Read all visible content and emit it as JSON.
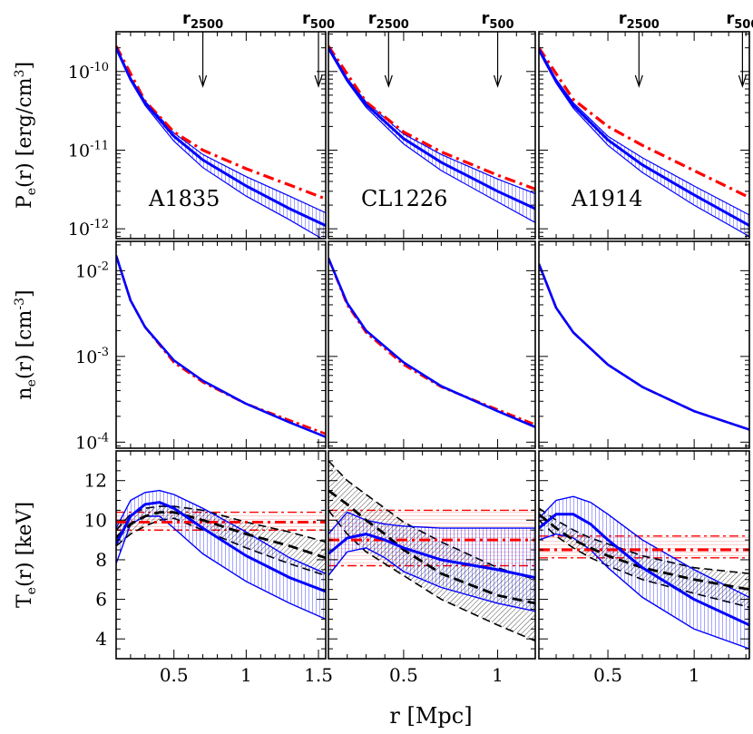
{
  "colors": {
    "model_obs": "#0000ff",
    "model_alt": "#ff0000",
    "temp_ref": "#000000"
  },
  "chart_data": {
    "type": "line",
    "xlabel": "r [Mpc]",
    "row_labels": [
      {
        "main": "P",
        "sub": "e",
        "rest": "(r) [erg/cm",
        "sup": "3",
        "end": "]"
      },
      {
        "main": "n",
        "sub": "e",
        "rest": "(r) [cm",
        "sup": "-3",
        "end": "]"
      },
      {
        "main": "T",
        "sub": "e",
        "rest": "(r) [keV]",
        "sup": "",
        "end": ""
      }
    ],
    "clusters": [
      {
        "name": "A1835",
        "xlim": [
          0.1,
          1.55
        ],
        "xticks": [
          {
            "v": 0.5,
            "label": "0.5"
          },
          {
            "v": 1.0,
            "label": "1"
          },
          {
            "v": 1.5,
            "label": "1.5"
          }
        ],
        "radii": [
          {
            "label": "r",
            "sub": "2500",
            "x": 0.7
          },
          {
            "label": "r",
            "sub": "500",
            "x": 1.5
          }
        ],
        "pressure": {
          "blue_x": [
            0.1,
            0.2,
            0.3,
            0.5,
            0.7,
            1.0,
            1.3,
            1.55
          ],
          "blue": [
            2e-10,
            8e-11,
            4e-11,
            1.5e-11,
            7.5e-12,
            3.5e-12,
            1.8e-12,
            1.1e-12
          ],
          "blue_lo": [
            1.9e-10,
            7.6e-11,
            3.7e-11,
            1.3e-11,
            6e-12,
            2.6e-12,
            1.3e-12,
            7e-13
          ],
          "blue_hi": [
            2.1e-10,
            8.4e-11,
            4.2e-11,
            1.65e-11,
            8.8e-12,
            4.6e-12,
            2.6e-12,
            1.6e-12
          ],
          "red_x": [
            0.1,
            0.3,
            0.5,
            0.7,
            1.0,
            1.3,
            1.55
          ],
          "red": [
            2.1e-10,
            4.2e-11,
            1.7e-11,
            1e-11,
            5.8e-12,
            3.6e-12,
            2.4e-12
          ]
        },
        "density": {
          "x": [
            0.1,
            0.2,
            0.3,
            0.5,
            0.7,
            1.0,
            1.3,
            1.55
          ],
          "blue": [
            0.015,
            0.0045,
            0.0022,
            0.0009,
            0.00052,
            0.00028,
            0.00017,
            0.000115
          ],
          "red": [
            0.015,
            0.0045,
            0.0022,
            0.00085,
            0.0005,
            0.00028,
            0.00018,
            0.000125
          ]
        },
        "temperature": {
          "x": [
            0.1,
            0.2,
            0.3,
            0.4,
            0.5,
            0.7,
            1.0,
            1.3,
            1.55
          ],
          "blue": [
            8.8,
            10.2,
            10.8,
            10.9,
            10.6,
            9.6,
            8.2,
            7.1,
            6.4
          ],
          "blue_lo": [
            7.8,
            9.8,
            10.2,
            10.2,
            9.6,
            8.3,
            6.9,
            5.8,
            5.0
          ],
          "blue_hi": [
            9.6,
            11.0,
            11.4,
            11.5,
            11.3,
            10.6,
            9.4,
            8.1,
            7.3
          ],
          "black": [
            9.1,
            9.8,
            10.2,
            10.4,
            10.4,
            10.0,
            9.3,
            8.7,
            8.1
          ],
          "black_lo": [
            8.7,
            9.3,
            9.7,
            10.0,
            10.1,
            9.5,
            8.6,
            7.8,
            7.2
          ],
          "black_hi": [
            9.5,
            10.3,
            10.6,
            10.7,
            10.7,
            10.5,
            9.9,
            9.4,
            8.9
          ],
          "red": 9.9,
          "red_lo": 9.5,
          "red_hi": 10.4
        }
      },
      {
        "name": "CL1226",
        "xlim": [
          0.1,
          1.2
        ],
        "xticks": [
          {
            "v": 0.5,
            "label": "0.5"
          },
          {
            "v": 1.0,
            "label": "1"
          }
        ],
        "radii": [
          {
            "label": "r",
            "sub": "2500",
            "x": 0.42
          },
          {
            "label": "r",
            "sub": "500",
            "x": 1.0
          }
        ],
        "pressure": {
          "blue_x": [
            0.1,
            0.2,
            0.3,
            0.5,
            0.7,
            1.0,
            1.2
          ],
          "blue": [
            2e-10,
            7.8e-11,
            3.8e-11,
            1.4e-11,
            7e-12,
            3e-12,
            1.8e-12
          ],
          "blue_lo": [
            1.9e-10,
            7.4e-11,
            3.5e-11,
            1.2e-11,
            5.5e-12,
            2.2e-12,
            1.2e-12
          ],
          "blue_hi": [
            2.1e-10,
            8.2e-11,
            4.1e-11,
            1.6e-11,
            8.8e-12,
            4.3e-12,
            2.8e-12
          ],
          "red_x": [
            0.1,
            0.3,
            0.5,
            0.7,
            1.0,
            1.2
          ],
          "red": [
            2.1e-10,
            4.1e-11,
            1.7e-11,
            9.5e-12,
            4.8e-12,
            3.2e-12
          ]
        },
        "density": {
          "x": [
            0.1,
            0.2,
            0.3,
            0.5,
            0.7,
            1.0,
            1.2
          ],
          "blue": [
            0.014,
            0.0042,
            0.002,
            0.00085,
            0.00045,
            0.00023,
            0.00015
          ],
          "red": [
            0.014,
            0.004,
            0.0019,
            0.0008,
            0.00044,
            0.00024,
            0.00016
          ]
        },
        "temperature": {
          "x": [
            0.1,
            0.2,
            0.3,
            0.4,
            0.5,
            0.7,
            1.0,
            1.2
          ],
          "blue": [
            8.3,
            9.1,
            9.3,
            9.0,
            8.6,
            8.0,
            7.5,
            7.1
          ],
          "blue_lo": [
            7.2,
            8.4,
            8.6,
            8.1,
            7.4,
            6.6,
            5.8,
            5.4
          ],
          "blue_hi": [
            9.3,
            10.4,
            10.0,
            9.8,
            9.7,
            9.6,
            9.6,
            9.6
          ],
          "black": [
            11.5,
            10.8,
            10.0,
            9.3,
            8.5,
            7.3,
            6.2,
            5.8
          ],
          "black_lo": [
            10.5,
            9.3,
            8.4,
            7.8,
            7.2,
            6.0,
            4.7,
            3.9
          ],
          "black_hi": [
            13.0,
            12.0,
            11.3,
            10.6,
            9.9,
            8.9,
            7.6,
            7.0
          ],
          "red": 9.0,
          "red_lo": 7.7,
          "red_hi": 10.5
        }
      },
      {
        "name": "A1914",
        "xlim": [
          0.1,
          1.32
        ],
        "xticks": [
          {
            "v": 0.5,
            "label": "0.5"
          },
          {
            "v": 1.0,
            "label": "1"
          }
        ],
        "radii": [
          {
            "label": "r",
            "sub": "2500",
            "x": 0.68
          },
          {
            "label": "r",
            "sub": "500",
            "x": 1.28
          }
        ],
        "pressure": {
          "blue_x": [
            0.1,
            0.2,
            0.3,
            0.5,
            0.7,
            1.0,
            1.32
          ],
          "blue": [
            1.9e-10,
            7.5e-11,
            3.7e-11,
            1.35e-11,
            6.5e-12,
            2.7e-12,
            1.1e-12
          ],
          "blue_lo": [
            1.8e-10,
            7.1e-11,
            3.4e-11,
            1.15e-11,
            5.2e-12,
            2e-12,
            8e-13
          ],
          "blue_hi": [
            2e-10,
            8e-11,
            4e-11,
            1.5e-11,
            8e-12,
            3.5e-12,
            1.5e-12
          ],
          "red_x": [
            0.1,
            0.3,
            0.5,
            0.7,
            1.0,
            1.32
          ],
          "red": [
            2e-10,
            4.4e-11,
            2e-11,
            1.15e-11,
            5.5e-12,
            2.5e-12
          ]
        },
        "density": {
          "x": [
            0.1,
            0.2,
            0.3,
            0.5,
            0.7,
            1.0,
            1.32
          ],
          "blue": [
            0.012,
            0.0037,
            0.0019,
            0.0008,
            0.00044,
            0.00023,
            0.00014
          ],
          "red": [
            0.012,
            0.0037,
            0.0019,
            0.0008,
            0.00044,
            0.00023,
            0.00014
          ]
        },
        "temperature": {
          "x": [
            0.1,
            0.2,
            0.3,
            0.4,
            0.5,
            0.7,
            1.0,
            1.32
          ],
          "blue": [
            9.6,
            10.3,
            10.3,
            9.8,
            9.0,
            7.6,
            6.0,
            4.7
          ],
          "blue_lo": [
            9.0,
            9.3,
            9.1,
            8.5,
            7.6,
            6.1,
            4.5,
            3.5
          ],
          "blue_hi": [
            10.1,
            11.0,
            11.2,
            10.9,
            10.3,
            9.0,
            7.5,
            6.1
          ],
          "black": [
            10.3,
            9.6,
            9.0,
            8.6,
            8.2,
            7.6,
            7.0,
            6.5
          ],
          "black_lo": [
            10.0,
            9.2,
            8.6,
            8.1,
            7.7,
            7.0,
            6.3,
            5.6
          ],
          "black_hi": [
            10.6,
            10.0,
            9.5,
            9.1,
            8.8,
            8.2,
            7.6,
            7.3
          ],
          "red": 8.5,
          "red_lo": 8.1,
          "red_hi": 9.2
        }
      }
    ],
    "rows": [
      {
        "quantity": "pressure",
        "scale": "log",
        "ylim": [
          7.5e-13,
          3.2e-10
        ],
        "yticks": [
          {
            "v": 1e-10,
            "base": "10",
            "exp": "-10"
          },
          {
            "v": 1e-11,
            "base": "10",
            "exp": "-11"
          },
          {
            "v": 1e-12,
            "base": "10",
            "exp": "-12"
          }
        ]
      },
      {
        "quantity": "density",
        "scale": "log",
        "ylim": [
          8.5e-05,
          0.022
        ],
        "yticks": [
          {
            "v": 0.01,
            "base": "10",
            "exp": "-2"
          },
          {
            "v": 0.001,
            "base": "10",
            "exp": "-3"
          },
          {
            "v": 0.0001,
            "base": "10",
            "exp": "-4"
          }
        ]
      },
      {
        "quantity": "temperature",
        "scale": "linear",
        "ylim": [
          3.0,
          13.5
        ],
        "yticks": [
          {
            "v": 4,
            "label": "4"
          },
          {
            "v": 6,
            "label": "6"
          },
          {
            "v": 8,
            "label": "8"
          },
          {
            "v": 10,
            "label": "10"
          },
          {
            "v": 12,
            "label": "12"
          }
        ]
      }
    ]
  }
}
